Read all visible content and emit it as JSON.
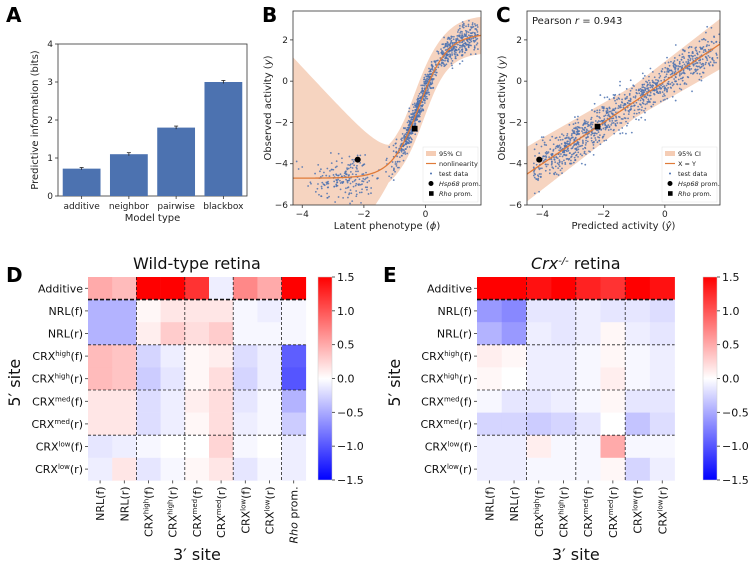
{
  "panels": {
    "A": "A",
    "B": "B",
    "C": "C",
    "D": "D",
    "E": "E"
  },
  "chart_data": [
    {
      "id": "A",
      "type": "bar",
      "categories": [
        "additive",
        "neighbor",
        "pairwise",
        "blackbox"
      ],
      "values": [
        0.72,
        1.1,
        1.8,
        3.0
      ],
      "errors": [
        0.03,
        0.04,
        0.04,
        0.04
      ],
      "xlabel": "Model type",
      "ylabel": "Predictive information (bits)",
      "ylim": [
        0,
        4
      ],
      "yticks": [
        0,
        1,
        2,
        3,
        4
      ],
      "color": "#4c72b0"
    },
    {
      "id": "B",
      "type": "scatter",
      "xlabel": "Latent phenotype (ϕ)",
      "ylabel": "Observed activity (y)",
      "xlim": [
        -4.3,
        1.8
      ],
      "ylim": [
        -6,
        3.4
      ],
      "xticks": [
        -4,
        -2,
        0
      ],
      "yticks": [
        -6,
        -4,
        -2,
        0,
        2
      ],
      "legend": [
        "95% CI",
        "nonlinearity",
        "test data",
        "Hsp68 prom.",
        "Rho prom."
      ],
      "legend_italic_prefix": [
        "",
        "",
        "",
        "Hsp68",
        "Rho"
      ],
      "legend_suffix": [
        "95% CI",
        "nonlinearity",
        "test data",
        " prom.",
        " prom."
      ],
      "markers": [
        {
          "label": "Hsp68 prom.",
          "x": -2.2,
          "y": -3.8,
          "shape": "circle"
        },
        {
          "label": "Rho prom.",
          "x": -0.35,
          "y": -2.3,
          "shape": "square"
        }
      ],
      "colors": {
        "points": "#4c72b0",
        "line": "#e07b39",
        "ci": "#f5cdb5"
      }
    },
    {
      "id": "C",
      "type": "scatter",
      "annotation": "Pearson r = 0.943",
      "annotation_prefix": "Pearson ",
      "annotation_italic": "r",
      "annotation_suffix": " = 0.943",
      "xlabel": "Predicted activity (ŷ)",
      "ylabel": "Observed activity (y)",
      "xlim": [
        -4.5,
        1.8
      ],
      "ylim": [
        -6,
        3.4
      ],
      "xticks": [
        -4,
        -2,
        0
      ],
      "yticks": [
        -6,
        -4,
        -2,
        0,
        2
      ],
      "legend": [
        "95% CI",
        "X = Y",
        "test data",
        "Hsp68 prom.",
        "Rho prom."
      ],
      "legend_italic_prefix": [
        "",
        "",
        "",
        "Hsp68",
        "Rho"
      ],
      "legend_suffix": [
        "95% CI",
        "X = Y",
        "test data",
        " prom.",
        " prom."
      ],
      "markers": [
        {
          "label": "Hsp68 prom.",
          "x": -4.1,
          "y": -3.8,
          "shape": "circle"
        },
        {
          "label": "Rho prom.",
          "x": -2.2,
          "y": -2.2,
          "shape": "square"
        }
      ],
      "colors": {
        "points": "#4c72b0",
        "line": "#e07b39",
        "ci": "#f5cdb5"
      }
    },
    {
      "id": "D",
      "type": "heatmap",
      "title": "Wild-type retina",
      "xlabel": "3′ site",
      "ylabel": "5′ site",
      "row_labels": [
        {
          "base": "Additive",
          "sup": "",
          "suf": ""
        },
        {
          "base": "NRL",
          "sup": "",
          "suf": "(f)"
        },
        {
          "base": "NRL",
          "sup": "",
          "suf": "(r)"
        },
        {
          "base": "CRX",
          "sup": "high",
          "suf": "(f)"
        },
        {
          "base": "CRX",
          "sup": "high",
          "suf": "(r)"
        },
        {
          "base": "CRX",
          "sup": "med",
          "suf": "(f)"
        },
        {
          "base": "CRX",
          "sup": "med",
          "suf": "(r)"
        },
        {
          "base": "CRX",
          "sup": "low",
          "suf": "(f)"
        },
        {
          "base": "CRX",
          "sup": "low",
          "suf": "(r)"
        }
      ],
      "col_labels": [
        {
          "base": "NRL",
          "sup": "",
          "suf": "(f)",
          "italic": ""
        },
        {
          "base": "NRL",
          "sup": "",
          "suf": "(r)",
          "italic": ""
        },
        {
          "base": "CRX",
          "sup": "high",
          "suf": "(f)",
          "italic": ""
        },
        {
          "base": "CRX",
          "sup": "high",
          "suf": "(r)",
          "italic": ""
        },
        {
          "base": "CRX",
          "sup": "med",
          "suf": "(f)",
          "italic": ""
        },
        {
          "base": "CRX",
          "sup": "med",
          "suf": "(r)",
          "italic": ""
        },
        {
          "base": "CRX",
          "sup": "low",
          "suf": "(f)",
          "italic": ""
        },
        {
          "base": "CRX",
          "sup": "low",
          "suf": "(r)",
          "italic": ""
        },
        {
          "base": "",
          "sup": "",
          "suf": " prom.",
          "italic": "Rho"
        }
      ],
      "values": [
        [
          0.5,
          0.4,
          1.5,
          1.5,
          1.2,
          -0.1,
          0.7,
          0.5,
          1.5
        ],
        [
          -0.45,
          -0.45,
          0.05,
          0.15,
          0.15,
          0.15,
          -0.05,
          -0.1,
          -0.05
        ],
        [
          -0.45,
          -0.45,
          0.1,
          0.3,
          0.2,
          0.3,
          -0.05,
          -0.05,
          -0.05
        ],
        [
          0.4,
          0.35,
          -0.25,
          -0.1,
          0.05,
          0.1,
          -0.2,
          -0.1,
          -0.95
        ],
        [
          0.4,
          0.35,
          -0.3,
          -0.15,
          0.05,
          0.2,
          -0.25,
          -0.1,
          -1.0
        ],
        [
          0.15,
          0.15,
          -0.2,
          -0.1,
          0.1,
          0.2,
          -0.15,
          -0.05,
          -0.45
        ],
        [
          0.15,
          0.15,
          -0.2,
          -0.1,
          0.05,
          0.2,
          -0.1,
          -0.05,
          -0.3
        ],
        [
          -0.15,
          -0.1,
          -0.05,
          0.0,
          0.0,
          0.25,
          -0.05,
          0.0,
          -0.1
        ],
        [
          -0.1,
          0.15,
          -0.15,
          -0.05,
          0.05,
          0.15,
          -0.15,
          -0.05,
          -0.1
        ]
      ],
      "vmin": -1.5,
      "vmax": 1.5,
      "colorbar_ticks": [
        "1.5",
        "1.0",
        "0.5",
        "0.0",
        "−0.5",
        "−1.0",
        "−1.5"
      ]
    },
    {
      "id": "E",
      "type": "heatmap",
      "title_prefix": "",
      "title_italic": "Crx",
      "title_sup": "-/-",
      "title_suffix": " retina",
      "xlabel": "3′ site",
      "ylabel": "5′ site",
      "row_labels": [
        {
          "base": "Additive",
          "sup": "",
          "suf": ""
        },
        {
          "base": "NRL",
          "sup": "",
          "suf": "(f)"
        },
        {
          "base": "NRL",
          "sup": "",
          "suf": "(r)"
        },
        {
          "base": "CRX",
          "sup": "high",
          "suf": "(f)"
        },
        {
          "base": "CRX",
          "sup": "high",
          "suf": "(r)"
        },
        {
          "base": "CRX",
          "sup": "med",
          "suf": "(f)"
        },
        {
          "base": "CRX",
          "sup": "med",
          "suf": "(r)"
        },
        {
          "base": "CRX",
          "sup": "low",
          "suf": "(f)"
        },
        {
          "base": "CRX",
          "sup": "low",
          "suf": "(r)"
        }
      ],
      "col_labels": [
        {
          "base": "NRL",
          "sup": "",
          "suf": "(f)",
          "italic": ""
        },
        {
          "base": "NRL",
          "sup": "",
          "suf": "(r)",
          "italic": ""
        },
        {
          "base": "CRX",
          "sup": "high",
          "suf": "(f)",
          "italic": ""
        },
        {
          "base": "CRX",
          "sup": "high",
          "suf": "(r)",
          "italic": ""
        },
        {
          "base": "CRX",
          "sup": "med",
          "suf": "(f)",
          "italic": ""
        },
        {
          "base": "CRX",
          "sup": "med",
          "suf": "(r)",
          "italic": ""
        },
        {
          "base": "CRX",
          "sup": "low",
          "suf": "(f)",
          "italic": ""
        },
        {
          "base": "CRX",
          "sup": "low",
          "suf": "(r)",
          "italic": ""
        }
      ],
      "values": [
        [
          1.5,
          1.5,
          1.4,
          1.5,
          1.3,
          1.2,
          1.5,
          1.4
        ],
        [
          -0.6,
          -0.7,
          -0.15,
          -0.15,
          -0.1,
          -0.15,
          -0.15,
          -0.2
        ],
        [
          -0.45,
          -0.6,
          -0.1,
          -0.15,
          -0.1,
          0.05,
          -0.1,
          -0.15
        ],
        [
          0.1,
          0.05,
          -0.1,
          -0.1,
          -0.05,
          0.05,
          -0.05,
          -0.1
        ],
        [
          0.05,
          0.0,
          -0.1,
          -0.1,
          -0.05,
          0.1,
          -0.05,
          -0.1
        ],
        [
          -0.05,
          -0.15,
          -0.15,
          -0.1,
          -0.05,
          0.05,
          -0.15,
          -0.15
        ],
        [
          -0.25,
          -0.25,
          -0.3,
          -0.25,
          -0.15,
          0.0,
          -0.35,
          -0.2
        ],
        [
          -0.1,
          -0.1,
          0.1,
          -0.05,
          -0.05,
          0.5,
          -0.05,
          -0.05
        ],
        [
          -0.1,
          -0.1,
          -0.05,
          -0.05,
          -0.05,
          0.05,
          -0.25,
          -0.1
        ]
      ],
      "vmin": -1.5,
      "vmax": 1.5,
      "colorbar_ticks": [
        "1.5",
        "1.0",
        "0.5",
        "0.0",
        "−0.5",
        "−1.0",
        "−1.5"
      ]
    }
  ]
}
